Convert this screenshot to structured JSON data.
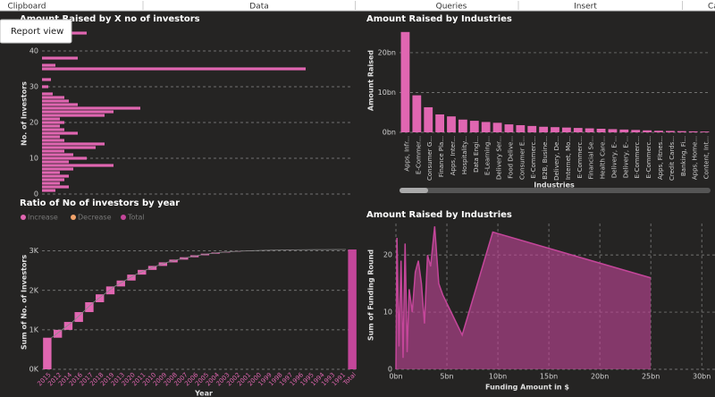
{
  "ribbon": {
    "groups": [
      "Clipboard",
      "Data",
      "Queries",
      "Insert",
      "Calculations"
    ]
  },
  "tooltip": "Report view",
  "chart_data": [
    {
      "type": "hbar",
      "title": "Amount Raised by X no of investors",
      "ylabel": "No. of Investors",
      "color": "#e066b1",
      "y": [
        1,
        2,
        3,
        4,
        5,
        6,
        7,
        8,
        9,
        10,
        11,
        12,
        13,
        14,
        15,
        16,
        17,
        18,
        19,
        20,
        21,
        22,
        23,
        24,
        25,
        26,
        27,
        28,
        30,
        32,
        35,
        36,
        38,
        45
      ],
      "values": [
        15,
        30,
        20,
        25,
        30,
        20,
        35,
        80,
        30,
        50,
        35,
        25,
        60,
        70,
        25,
        20,
        40,
        25,
        20,
        25,
        20,
        70,
        80,
        110,
        40,
        30,
        25,
        12,
        7,
        10,
        295,
        15,
        40,
        50
      ],
      "xlim": [
        0,
        300
      ],
      "ylim": [
        0,
        45
      ],
      "yticks": [
        0,
        10,
        20,
        30,
        40
      ],
      "grid": true
    },
    {
      "type": "bar",
      "title": "Amount Raised by Industries",
      "ylabel": "Amount Raised",
      "xlabel": "Industries",
      "color": "#e066b1",
      "categories": [
        "Apps, Infr...",
        "E-Commer...",
        "Consumer G...",
        "Finance Pla...",
        "Apps, Inter...",
        "Hospitality...",
        "Data Engi...",
        "E-Learning...",
        "Delivery Ser...",
        "Food Delive...",
        "Consumer E...",
        "E-Commerc...",
        "B2B, Busine...",
        "Delivery, De...",
        "Internet, Mo...",
        "E-Commerc...",
        "Financial Se...",
        "Health Care...",
        "Delivery, E-...",
        "Delivery, E-...",
        "E-Commerc...",
        "E-Commerc...",
        "Apps, Fitnes...",
        "Credit Cards...",
        "Banking, Fi...",
        "Apps, Home...",
        "Content, Int..."
      ],
      "values": [
        25.2,
        9.3,
        6.3,
        4.5,
        4,
        3.2,
        2.9,
        2.6,
        2.4,
        2,
        1.8,
        1.6,
        1.4,
        1.3,
        1.2,
        1.1,
        1,
        0.9,
        0.8,
        0.7,
        0.6,
        0.5,
        0.4,
        0.35,
        0.3,
        0.25,
        0.2
      ],
      "ylim": [
        0,
        26.5
      ],
      "yticks": [
        {
          "value": 0,
          "label": "0bn"
        },
        {
          "value": 10,
          "label": "10bn"
        },
        {
          "value": 20,
          "label": "20bn"
        }
      ],
      "grid": true
    },
    {
      "type": "waterfall",
      "title": "Ratio of No of investors by year",
      "ylabel": "Sum of No. of Investors",
      "xlabel": "Year",
      "legend": [
        {
          "name": "Increase",
          "color": "#e066b1"
        },
        {
          "name": "Decrease",
          "color": "#f2a36b"
        },
        {
          "name": "Total",
          "color": "#c4469a"
        }
      ],
      "categories": [
        "2015",
        "2012",
        "2014",
        "2016",
        "2017",
        "2018",
        "2019",
        "2013",
        "2020",
        "2011",
        "2010",
        "2009",
        "2008",
        "2007",
        "2006",
        "2005",
        "2004",
        "2003",
        "2002",
        "2001",
        "2000",
        "1999",
        "1998",
        "1997",
        "1996",
        "1995",
        "1994",
        "1993",
        "1991"
      ],
      "values": [
        800,
        200,
        200,
        250,
        250,
        200,
        200,
        150,
        150,
        120,
        100,
        90,
        70,
        60,
        50,
        40,
        30,
        20,
        15,
        10,
        8,
        6,
        5,
        4,
        3,
        2,
        2,
        1,
        1
      ],
      "total_label": "Total",
      "total": 3037,
      "ylim": [
        0,
        3400
      ],
      "yticks": [
        {
          "value": 0,
          "label": "0K"
        },
        {
          "value": 1000,
          "label": "1K"
        },
        {
          "value": 2000,
          "label": "2K"
        },
        {
          "value": 3000,
          "label": "3K"
        }
      ],
      "grid": true
    },
    {
      "type": "area",
      "title": "Amount Raised by Industries",
      "ylabel": "Sum of Funding Round",
      "xlabel": "Funding Amount in $",
      "color": "#c4469a",
      "x": [
        0,
        0.1,
        0.3,
        0.5,
        0.7,
        0.9,
        1.1,
        1.3,
        1.6,
        1.9,
        2.2,
        2.5,
        2.8,
        3.1,
        3.4,
        3.8,
        4.2,
        4.6,
        6.5,
        9.5,
        25
      ],
      "values": [
        0,
        23,
        4,
        19,
        2,
        22,
        3,
        14,
        10,
        17,
        19,
        15,
        8,
        20,
        18,
        25,
        15,
        13,
        6,
        24,
        16
      ],
      "xlim": [
        0,
        31.3
      ],
      "ylim": [
        0,
        25.5
      ],
      "xticks": [
        {
          "value": 0,
          "label": "0bn"
        },
        {
          "value": 5,
          "label": "5bn"
        },
        {
          "value": 10,
          "label": "10bn"
        },
        {
          "value": 15,
          "label": "15bn"
        },
        {
          "value": 20,
          "label": "20bn"
        },
        {
          "value": 25,
          "label": "25bn"
        },
        {
          "value": 30,
          "label": "30bn"
        }
      ],
      "yticks": [
        0,
        10,
        20
      ],
      "grid": true
    }
  ]
}
